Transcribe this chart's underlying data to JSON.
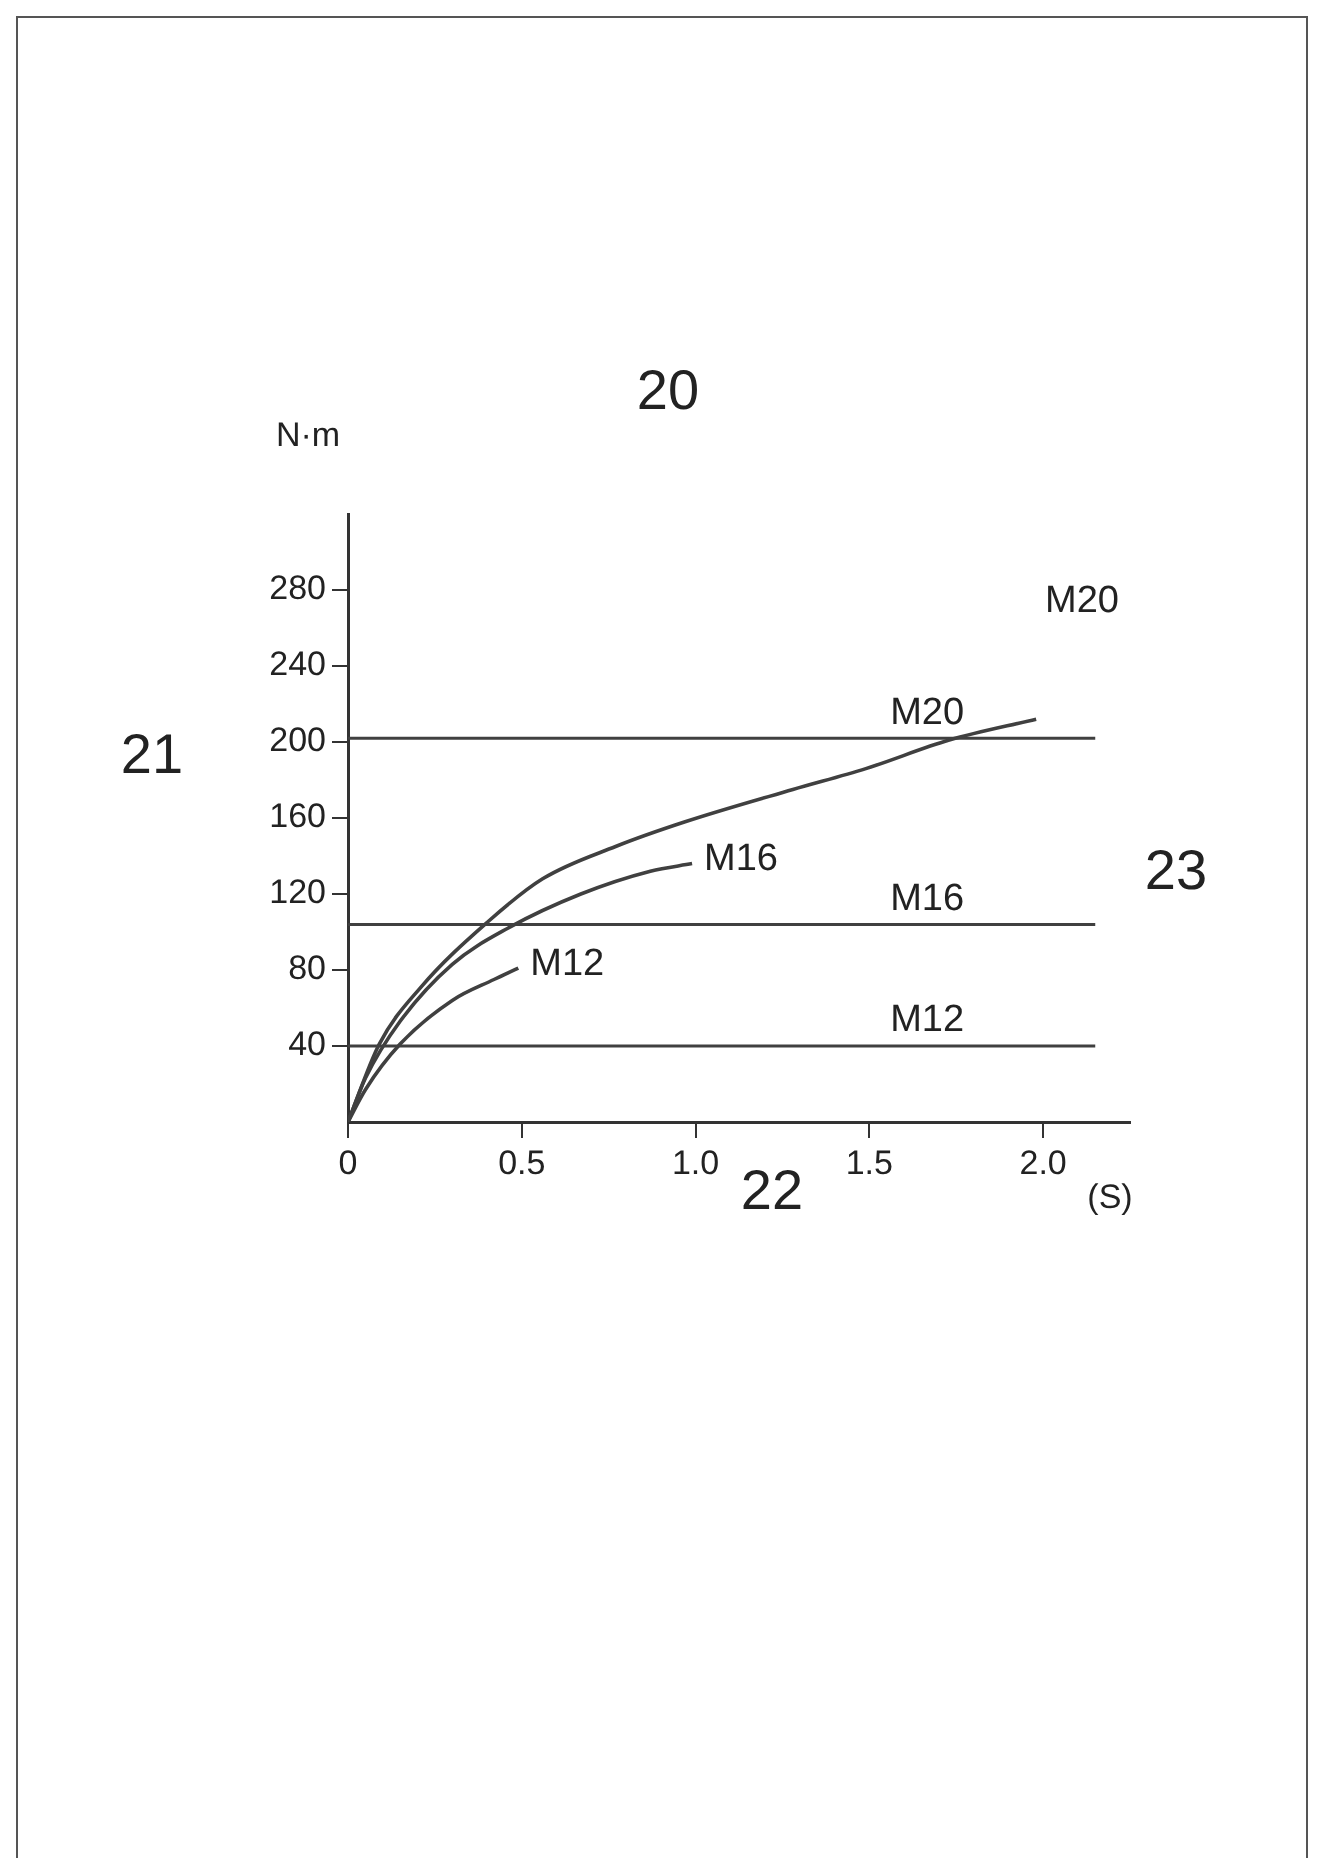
{
  "chart_data": {
    "type": "line",
    "xlabel": "(S)",
    "ylabel": "N·m",
    "xlim": [
      0,
      2.25
    ],
    "ylim": [
      0,
      320
    ],
    "xticks": [
      0,
      0.5,
      {
        "value": 1.0,
        "label": "1.0"
      },
      1.5,
      {
        "value": 2.0,
        "label": "2.0"
      }
    ],
    "yticks": [
      40,
      80,
      120,
      160,
      200,
      240,
      280
    ],
    "grid": false,
    "legend": false,
    "marker": "none",
    "line_style": "solid",
    "series": [
      {
        "color": "#404040",
        "x": [
          0,
          0.09,
          0.21,
          0.4,
          0.56,
          0.77,
          0.97,
          1.28,
          1.49,
          1.73,
          1.98
        ],
        "values": [
          0,
          41,
          71,
          105,
          128,
          145,
          158,
          175,
          186,
          201,
          212
        ]
      },
      {
        "name": "M16",
        "color": "#404040",
        "x": [
          0,
          0.05,
          0.15,
          0.3,
          0.46,
          0.67,
          0.87,
          0.99
        ],
        "values": [
          0,
          23,
          53,
          83,
          102,
          120,
          132,
          136
        ]
      },
      {
        "name": "M12",
        "color": "#404040",
        "x": [
          0,
          0.05,
          0.15,
          0.3,
          0.42,
          0.49
        ],
        "values": [
          0,
          17,
          41,
          64,
          75,
          81
        ]
      }
    ],
    "ref_lines": [
      {
        "axis": "y",
        "value": 202,
        "label": "M20",
        "color": "#404040"
      },
      {
        "axis": "y",
        "value": 104,
        "label": "M16",
        "color": "#404040"
      },
      {
        "axis": "y",
        "value": 40,
        "label": "M12",
        "color": "#404040"
      }
    ],
    "annotations": [
      "20",
      "21",
      "22",
      "23",
      "M20"
    ]
  }
}
